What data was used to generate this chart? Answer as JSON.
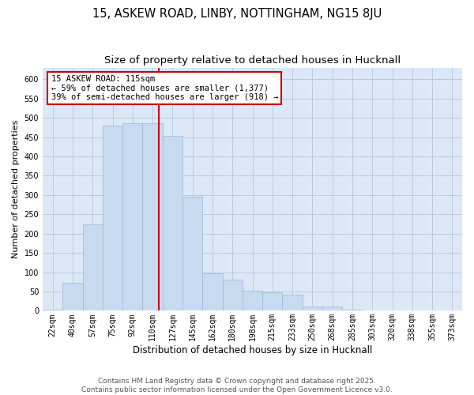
{
  "title1": "15, ASKEW ROAD, LINBY, NOTTINGHAM, NG15 8JU",
  "title2": "Size of property relative to detached houses in Hucknall",
  "xlabel": "Distribution of detached houses by size in Hucknall",
  "ylabel": "Number of detached properties",
  "categories": [
    "22sqm",
    "40sqm",
    "57sqm",
    "75sqm",
    "92sqm",
    "110sqm",
    "127sqm",
    "145sqm",
    "162sqm",
    "180sqm",
    "198sqm",
    "215sqm",
    "233sqm",
    "250sqm",
    "268sqm",
    "285sqm",
    "303sqm",
    "320sqm",
    "338sqm",
    "355sqm",
    "373sqm"
  ],
  "values": [
    2,
    73,
    223,
    480,
    485,
    485,
    453,
    296,
    98,
    80,
    53,
    47,
    42,
    12,
    12,
    2,
    1,
    0,
    0,
    0,
    0
  ],
  "bar_color": "#c8daf0",
  "bar_edge_color": "#9ab8d8",
  "bar_width": 1.0,
  "vline_color": "#cc0000",
  "annotation_title": "15 ASKEW ROAD: 115sqm",
  "annotation_line1": "← 59% of detached houses are smaller (1,377)",
  "annotation_line2": "39% of semi-detached houses are larger (918) →",
  "annotation_box_color": "white",
  "annotation_box_edge": "#cc0000",
  "ylim": [
    0,
    630
  ],
  "yticks": [
    0,
    50,
    100,
    150,
    200,
    250,
    300,
    350,
    400,
    450,
    500,
    550,
    600
  ],
  "grid_color": "#b8ccdf",
  "background_color": "#dce8f5",
  "footer": "Contains HM Land Registry data © Crown copyright and database right 2025.\nContains public sector information licensed under the Open Government Licence v3.0.",
  "title1_fontsize": 10.5,
  "title2_fontsize": 9.5,
  "xlabel_fontsize": 8.5,
  "ylabel_fontsize": 8,
  "tick_fontsize": 7,
  "footer_fontsize": 6.5,
  "annot_fontsize": 7.5
}
